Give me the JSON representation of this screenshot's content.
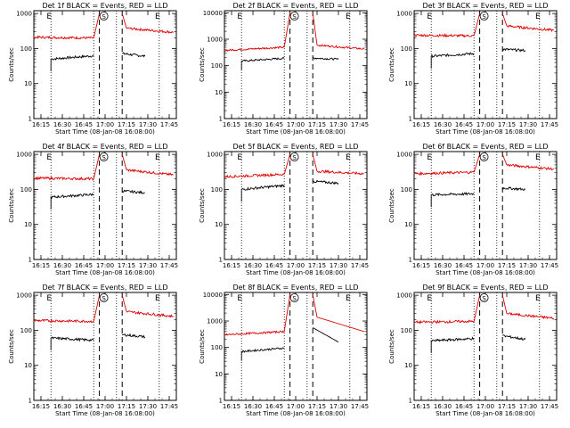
{
  "colors": {
    "events": "#000000",
    "lld": "#dd0000",
    "axes": "#000000"
  },
  "panel_common": {
    "ylabel": "Counts/sec",
    "xlabel": "Start Time (08-Jan-08 16:08:00)",
    "x_tick_labels": [
      "16:15",
      "16:30",
      "16:45",
      "17:00",
      "17:15",
      "17:30",
      "17:45"
    ],
    "x_tick_minutes": [
      15,
      30,
      45,
      60,
      75,
      90,
      105
    ],
    "y_tick_labels": [
      "1",
      "10",
      "100",
      "1000",
      "10000"
    ],
    "y_scale": "log",
    "xlim_minutes": [
      10,
      110
    ],
    "marker_s": "S",
    "marker_e": "E",
    "dotted_lines_minutes": [
      22,
      52,
      68,
      98
    ],
    "dashed_lines_minutes": [
      56,
      72
    ],
    "ylim_default": [
      1,
      1200
    ],
    "ylim_high": [
      1,
      12000
    ]
  },
  "chart_data": [
    {
      "type": "line",
      "title": "Det 1f BLACK = Events, RED = LLD",
      "ylim": [
        1,
        1200
      ],
      "series": [
        {
          "name": "Events",
          "color": "#000000",
          "segments": [
            {
              "x": [
                22,
                52
              ],
              "y": [
                50,
                62
              ]
            },
            {
              "x": [
                72,
                88
              ],
              "y": [
                72,
                60
              ]
            }
          ]
        },
        {
          "name": "LLD",
          "color": "#dd0000",
          "segments": [
            {
              "x": [
                10,
                52
              ],
              "y": [
                210,
                200
              ]
            },
            {
              "x": [
                52,
                56
              ],
              "y": [
                200,
                1000
              ]
            },
            {
              "x": [
                72,
                75
              ],
              "y": [
                1000,
                380
              ]
            },
            {
              "x": [
                75,
                108
              ],
              "y": [
                380,
                290
              ]
            }
          ]
        }
      ]
    },
    {
      "type": "line",
      "title": "Det 2f BLACK = Events, RED = LLD",
      "ylim": [
        1,
        12000
      ],
      "series": [
        {
          "name": "Events",
          "color": "#000000",
          "segments": [
            {
              "x": [
                22,
                52
              ],
              "y": [
                150,
                190
              ]
            },
            {
              "x": [
                72,
                90
              ],
              "y": [
                195,
                175
              ]
            }
          ]
        },
        {
          "name": "LLD",
          "color": "#dd0000",
          "segments": [
            {
              "x": [
                10,
                52
              ],
              "y": [
                380,
                500
              ]
            },
            {
              "x": [
                52,
                56
              ],
              "y": [
                500,
                10000
              ]
            },
            {
              "x": [
                72,
                75
              ],
              "y": [
                10000,
                600
              ]
            },
            {
              "x": [
                75,
                108
              ],
              "y": [
                600,
                430
              ]
            }
          ]
        }
      ]
    },
    {
      "type": "line",
      "title": "Det 3f BLACK = Events, RED = LLD",
      "ylim": [
        1,
        1200
      ],
      "series": [
        {
          "name": "Events",
          "color": "#000000",
          "segments": [
            {
              "x": [
                22,
                52
              ],
              "y": [
                60,
                72
              ]
            },
            {
              "x": [
                72,
                88
              ],
              "y": [
                95,
                88
              ]
            }
          ]
        },
        {
          "name": "LLD",
          "color": "#dd0000",
          "segments": [
            {
              "x": [
                10,
                52
              ],
              "y": [
                240,
                230
              ]
            },
            {
              "x": [
                52,
                56
              ],
              "y": [
                230,
                1000
              ]
            },
            {
              "x": [
                72,
                75
              ],
              "y": [
                1000,
                440
              ]
            },
            {
              "x": [
                75,
                108
              ],
              "y": [
                440,
                330
              ]
            }
          ]
        }
      ]
    },
    {
      "type": "line",
      "title": "Det 4f BLACK = Events, RED = LLD",
      "ylim": [
        1,
        1200
      ],
      "series": [
        {
          "name": "Events",
          "color": "#000000",
          "segments": [
            {
              "x": [
                22,
                52
              ],
              "y": [
                60,
                72
              ]
            },
            {
              "x": [
                72,
                88
              ],
              "y": [
                90,
                80
              ]
            }
          ]
        },
        {
          "name": "LLD",
          "color": "#dd0000",
          "segments": [
            {
              "x": [
                10,
                52
              ],
              "y": [
                210,
                200
              ]
            },
            {
              "x": [
                52,
                56
              ],
              "y": [
                200,
                1000
              ]
            },
            {
              "x": [
                72,
                75
              ],
              "y": [
                1000,
                360
              ]
            },
            {
              "x": [
                75,
                108
              ],
              "y": [
                360,
                260
              ]
            }
          ]
        }
      ]
    },
    {
      "type": "line",
      "title": "Det 5f BLACK = Events, RED = LLD",
      "ylim": [
        1,
        1200
      ],
      "series": [
        {
          "name": "Events",
          "color": "#000000",
          "segments": [
            {
              "x": [
                22,
                52
              ],
              "y": [
                100,
                130
              ]
            },
            {
              "x": [
                72,
                90
              ],
              "y": [
                170,
                150
              ]
            }
          ]
        },
        {
          "name": "LLD",
          "color": "#dd0000",
          "segments": [
            {
              "x": [
                10,
                52
              ],
              "y": [
                230,
                270
              ]
            },
            {
              "x": [
                52,
                56
              ],
              "y": [
                270,
                1000
              ]
            },
            {
              "x": [
                72,
                75
              ],
              "y": [
                1000,
                330
              ]
            },
            {
              "x": [
                75,
                108
              ],
              "y": [
                330,
                280
              ]
            }
          ]
        }
      ]
    },
    {
      "type": "line",
      "title": "Det 6f BLACK = Events, RED = LLD",
      "ylim": [
        1,
        1200
      ],
      "series": [
        {
          "name": "Events",
          "color": "#000000",
          "segments": [
            {
              "x": [
                22,
                52
              ],
              "y": [
                70,
                75
              ]
            },
            {
              "x": [
                72,
                88
              ],
              "y": [
                110,
                100
              ]
            }
          ]
        },
        {
          "name": "LLD",
          "color": "#dd0000",
          "segments": [
            {
              "x": [
                10,
                52
              ],
              "y": [
                280,
                310
              ]
            },
            {
              "x": [
                52,
                56
              ],
              "y": [
                310,
                1000
              ]
            },
            {
              "x": [
                72,
                75
              ],
              "y": [
                1000,
                500
              ]
            },
            {
              "x": [
                75,
                108
              ],
              "y": [
                500,
                380
              ]
            }
          ]
        }
      ]
    },
    {
      "type": "line",
      "title": "Det 7f BLACK = Events, RED = LLD",
      "ylim": [
        1,
        1200
      ],
      "series": [
        {
          "name": "Events",
          "color": "#000000",
          "segments": [
            {
              "x": [
                22,
                52
              ],
              "y": [
                60,
                52
              ]
            },
            {
              "x": [
                72,
                88
              ],
              "y": [
                75,
                65
              ]
            }
          ]
        },
        {
          "name": "LLD",
          "color": "#dd0000",
          "segments": [
            {
              "x": [
                10,
                52
              ],
              "y": [
                190,
                180
              ]
            },
            {
              "x": [
                52,
                56
              ],
              "y": [
                180,
                1000
              ]
            },
            {
              "x": [
                72,
                75
              ],
              "y": [
                1000,
                340
              ]
            },
            {
              "x": [
                75,
                108
              ],
              "y": [
                340,
                250
              ]
            }
          ]
        }
      ]
    },
    {
      "type": "line",
      "title": "Det 8f BLACK = Events, RED = LLD",
      "ylim": [
        1,
        12000
      ],
      "series": [
        {
          "name": "Events",
          "color": "#000000",
          "segments": [
            {
              "x": [
                22,
                52
              ],
              "y": [
                70,
                95
              ]
            },
            {
              "x": [
                72,
                90
              ],
              "y": [
                560,
                160
              ]
            }
          ]
        },
        {
          "name": "LLD",
          "color": "#dd0000",
          "segments": [
            {
              "x": [
                10,
                52
              ],
              "y": [
                300,
                400
              ]
            },
            {
              "x": [
                52,
                56
              ],
              "y": [
                400,
                10000
              ]
            },
            {
              "x": [
                72,
                75
              ],
              "y": [
                10000,
                1400
              ]
            },
            {
              "x": [
                75,
                108
              ],
              "y": [
                1400,
                400
              ]
            }
          ]
        }
      ]
    },
    {
      "type": "line",
      "title": "Det 9f BLACK = Events, RED = LLD",
      "ylim": [
        1,
        1200
      ],
      "series": [
        {
          "name": "Events",
          "color": "#000000",
          "segments": [
            {
              "x": [
                22,
                52
              ],
              "y": [
                50,
                58
              ]
            },
            {
              "x": [
                72,
                88
              ],
              "y": [
                70,
                55
              ]
            }
          ]
        },
        {
          "name": "LLD",
          "color": "#dd0000",
          "segments": [
            {
              "x": [
                10,
                52
              ],
              "y": [
                170,
                180
              ]
            },
            {
              "x": [
                52,
                56
              ],
              "y": [
                180,
                1000
              ]
            },
            {
              "x": [
                72,
                75
              ],
              "y": [
                1000,
                300
              ]
            },
            {
              "x": [
                75,
                108
              ],
              "y": [
                300,
                220
              ]
            }
          ]
        }
      ]
    }
  ]
}
